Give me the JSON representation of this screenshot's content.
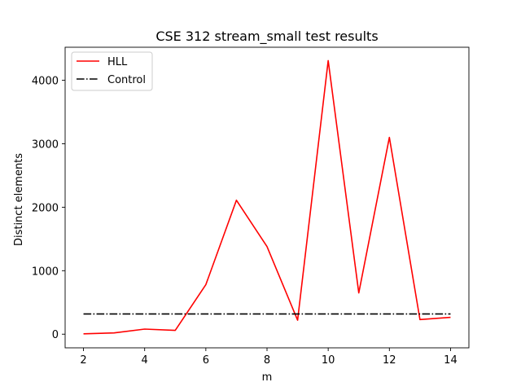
{
  "chart_data": {
    "type": "line",
    "title": "CSE 312 stream_small test results",
    "xlabel": "m",
    "ylabel": "Distinct elements",
    "x": [
      2,
      3,
      4,
      5,
      6,
      7,
      8,
      9,
      10,
      11,
      12,
      13,
      14
    ],
    "xlim": [
      1.4,
      14.6
    ],
    "ylim": [
      -215,
      4520
    ],
    "xticks": [
      2,
      4,
      6,
      8,
      10,
      12,
      14
    ],
    "yticks": [
      0,
      1000,
      2000,
      3000,
      4000
    ],
    "grid": false,
    "legend_position": "top-left",
    "series": [
      {
        "name": "HLL",
        "color": "#ff0000",
        "style": "solid",
        "values": [
          5,
          20,
          80,
          60,
          780,
          2110,
          1380,
          220,
          4310,
          650,
          3100,
          230,
          265
        ]
      },
      {
        "name": "Control",
        "color": "#000000",
        "style": "dashdot",
        "values": [
          318,
          318,
          318,
          318,
          318,
          318,
          318,
          318,
          318,
          318,
          318,
          318,
          318
        ]
      }
    ]
  }
}
